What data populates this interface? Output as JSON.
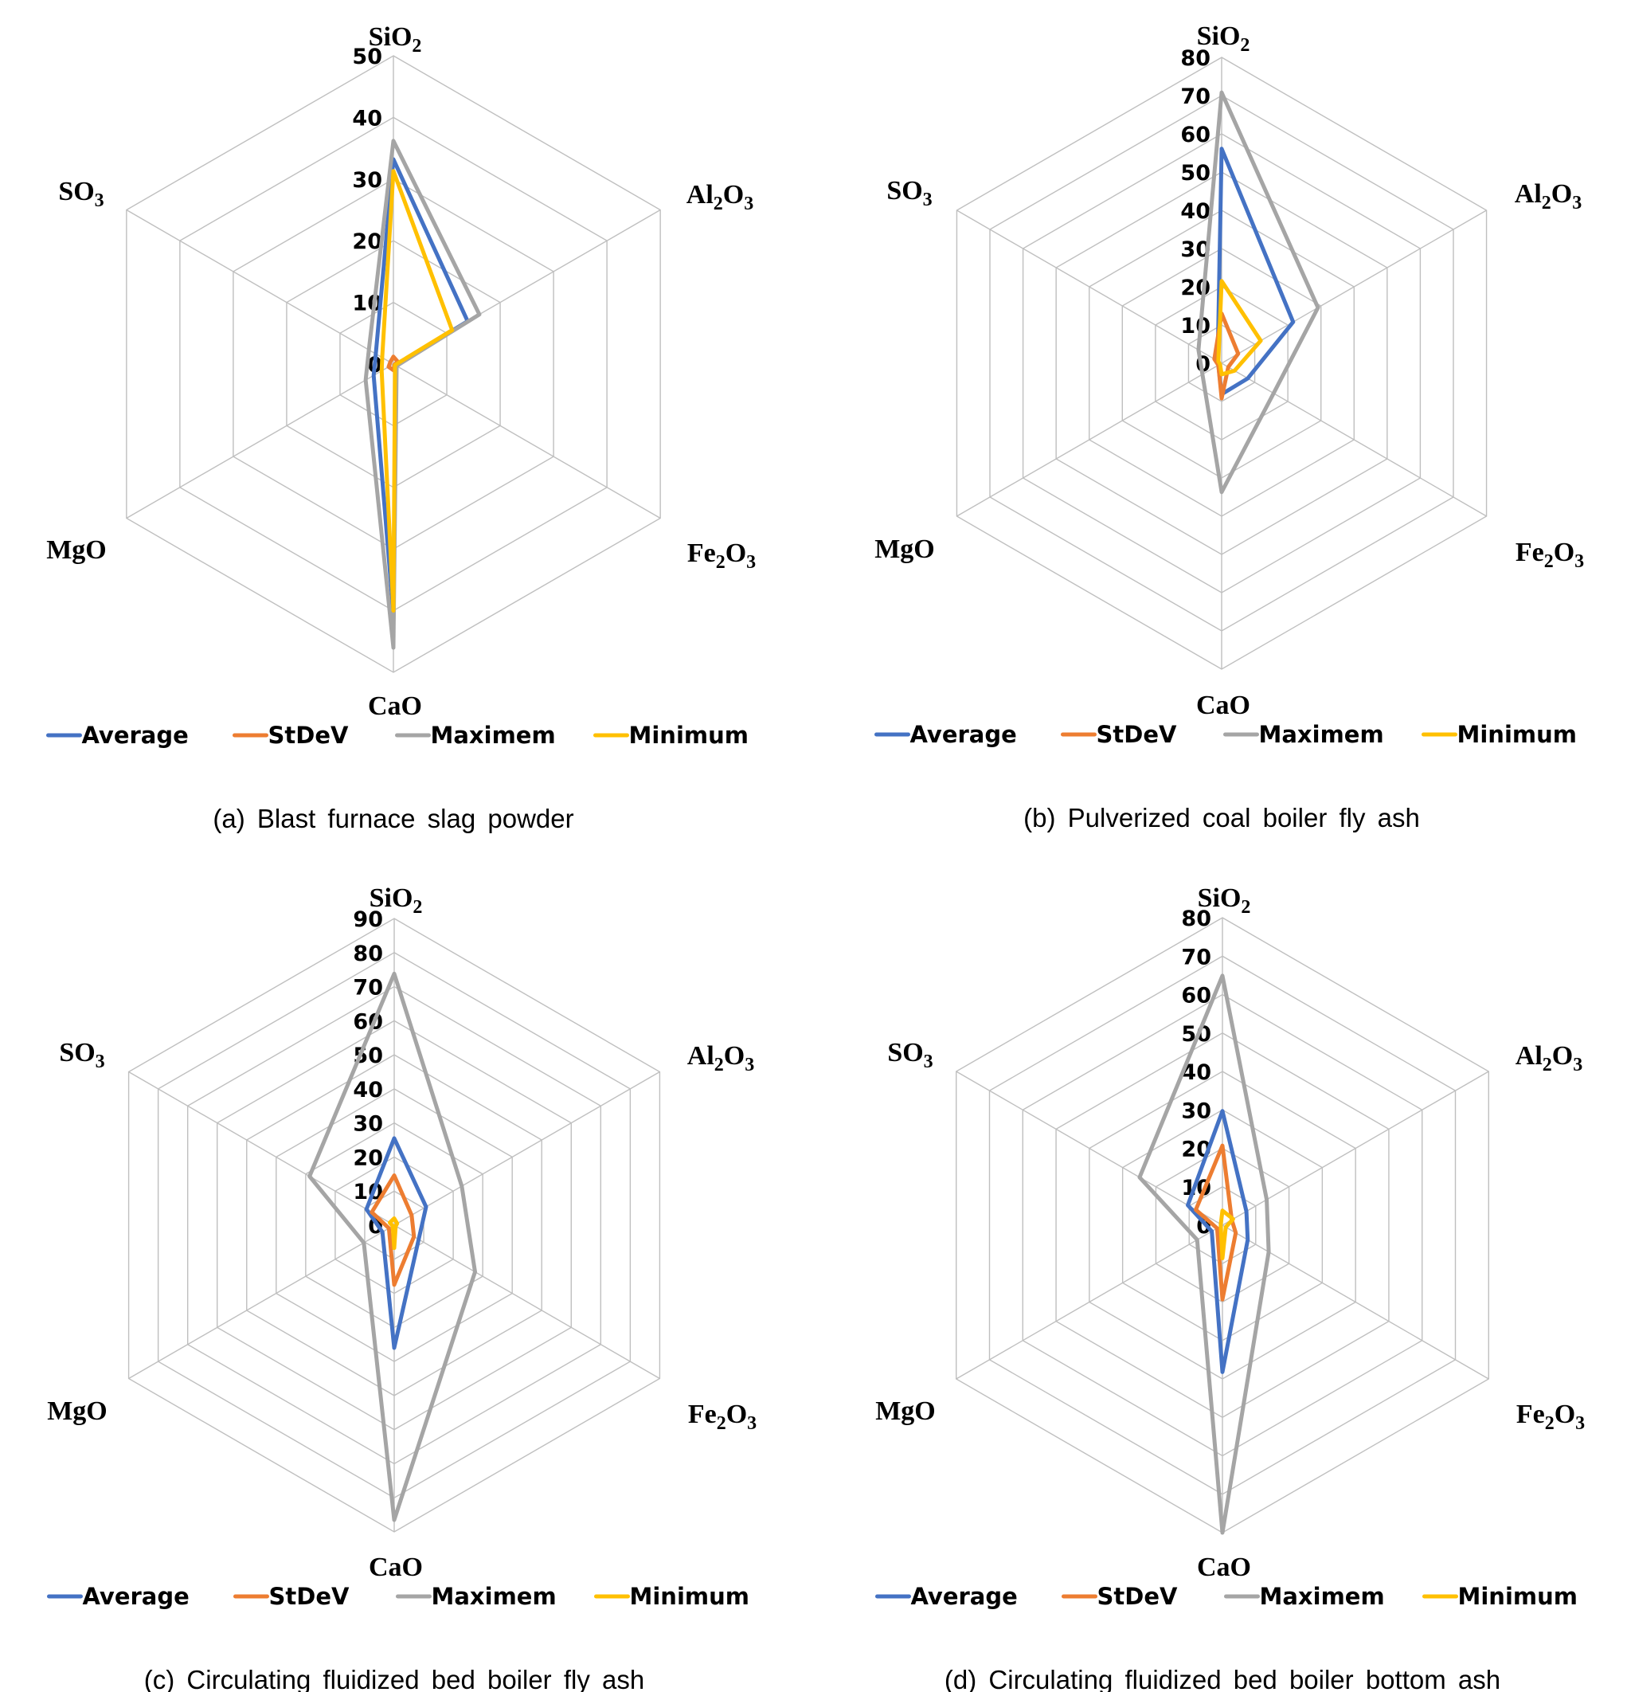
{
  "figure": {
    "legend": [
      {
        "name": "Average",
        "color": "#4472c4"
      },
      {
        "name": "StDeV",
        "color": "#ed7d31"
      },
      {
        "name": "Maximem",
        "color": "#a5a5a5"
      },
      {
        "name": "Minimum",
        "color": "#ffc000"
      }
    ]
  },
  "chart_data": [
    {
      "type": "radar",
      "title": "(a) Blast furnace slag powder",
      "categories": [
        "SiO2",
        "Al2O3",
        "Fe2O3",
        "CaO",
        "MgO",
        "SO3"
      ],
      "rlim": [
        0,
        50
      ],
      "ticks": [
        0,
        10,
        20,
        30,
        40,
        50
      ],
      "grid": true,
      "legend_position": "bottom",
      "series": [
        {
          "name": "Average",
          "values": [
            33.2,
            13.9,
            0.4,
            40.5,
            3.7,
            3.3
          ]
        },
        {
          "name": "StDeV",
          "values": [
            1.2,
            0.8,
            0.2,
            1.0,
            0.9,
            0.6
          ]
        },
        {
          "name": "Maximem",
          "values": [
            36.2,
            16.1,
            0.6,
            46.0,
            5.2,
            4.6
          ]
        },
        {
          "name": "Minimum",
          "values": [
            31.3,
            11.0,
            0.3,
            40.0,
            2.2,
            2.1
          ]
        }
      ]
    },
    {
      "type": "radar",
      "title": "(b) Pulverized coal boiler fly ash",
      "categories": [
        "SiO2",
        "Al2O3",
        "Fe2O3",
        "CaO",
        "MgO",
        "SO3"
      ],
      "rlim": [
        0,
        80
      ],
      "ticks": [
        0,
        10,
        20,
        30,
        40,
        50,
        60,
        70,
        80
      ],
      "grid": true,
      "legend_position": "bottom",
      "series": [
        {
          "name": "Average",
          "values": [
            56.1,
            21.6,
            7.9,
            8.1,
            1.0,
            1.2
          ]
        },
        {
          "name": "StDeV",
          "values": [
            13.0,
            5.0,
            2.0,
            9.2,
            1.0,
            2.2
          ]
        },
        {
          "name": "Maximem",
          "values": [
            70.8,
            29.1,
            15.7,
            33.7,
            5.8,
            7.0
          ]
        },
        {
          "name": "Minimum",
          "values": [
            21.5,
            11.8,
            3.9,
            2.9,
            0.5,
            1.0
          ]
        }
      ]
    },
    {
      "type": "radar",
      "title": "(c) Circulating fluidized bed boiler fly ash",
      "categories": [
        "SiO2",
        "Al2O3",
        "Fe2O3",
        "CaO",
        "MgO",
        "SO3"
      ],
      "rlim": [
        0,
        90
      ],
      "ticks": [
        0,
        10,
        20,
        30,
        40,
        50,
        60,
        70,
        80,
        90
      ],
      "grid": true,
      "legend_position": "bottom",
      "series": [
        {
          "name": "Average",
          "values": [
            25.5,
            10.8,
            8.3,
            36.0,
            4.0,
            9.4
          ]
        },
        {
          "name": "StDeV",
          "values": [
            14.6,
            5.9,
            6.7,
            17.5,
            1.8,
            7.6
          ]
        },
        {
          "name": "Maximem",
          "values": [
            73.8,
            22.9,
            27.4,
            86.5,
            10.3,
            28.7
          ]
        },
        {
          "name": "Minimum",
          "values": [
            2.0,
            1.0,
            0.5,
            6.7,
            0.5,
            1.5
          ]
        }
      ]
    },
    {
      "type": "radar",
      "title": "(d) Circulating fluidized bed boiler bottom ash",
      "categories": [
        "SiO2",
        "Al2O3",
        "Fe2O3",
        "CaO",
        "MgO",
        "SO3"
      ],
      "rlim": [
        0,
        80
      ],
      "ticks": [
        0,
        10,
        20,
        30,
        40,
        50,
        60,
        70,
        80
      ],
      "grid": true,
      "legend_position": "bottom",
      "series": [
        {
          "name": "Average",
          "values": [
            29.7,
            7.2,
            7.6,
            38.2,
            3.2,
            10.4
          ]
        },
        {
          "name": "StDeV",
          "values": [
            20.7,
            2.8,
            4.0,
            19.3,
            1.6,
            8.0
          ]
        },
        {
          "name": "Maximem",
          "values": [
            64.9,
            13.3,
            13.9,
            80.0,
            7.6,
            24.9
          ]
        },
        {
          "name": "Minimum",
          "values": [
            3.8,
            3.2,
            1.0,
            8.6,
            0.5,
            0.5
          ]
        }
      ]
    }
  ]
}
